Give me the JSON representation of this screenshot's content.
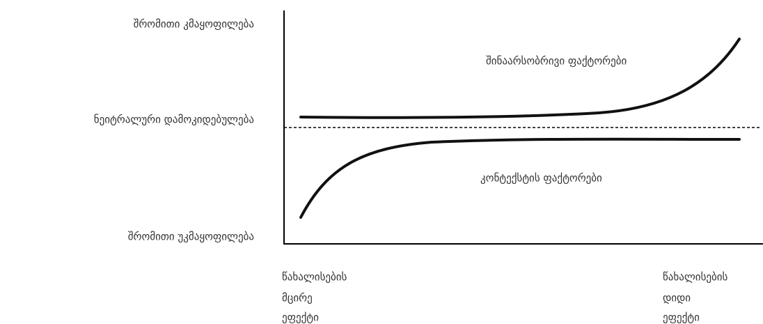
{
  "y_labels": {
    "top": "შრომითი კმაყოფილება",
    "middle": "ნეიტრალური დამოკიდებულება",
    "bottom": "შრომითი უკმაყოფილება"
  },
  "curves": {
    "upper": "შინაარსობრივი ფაქტორები",
    "lower": "კონტექსტის ფაქტორები"
  },
  "x_labels": {
    "left": [
      "წახალისების",
      "მცირე",
      "ეფექტი"
    ],
    "right": [
      "წახალისების",
      "დიდი",
      "ეფექტი"
    ]
  }
}
